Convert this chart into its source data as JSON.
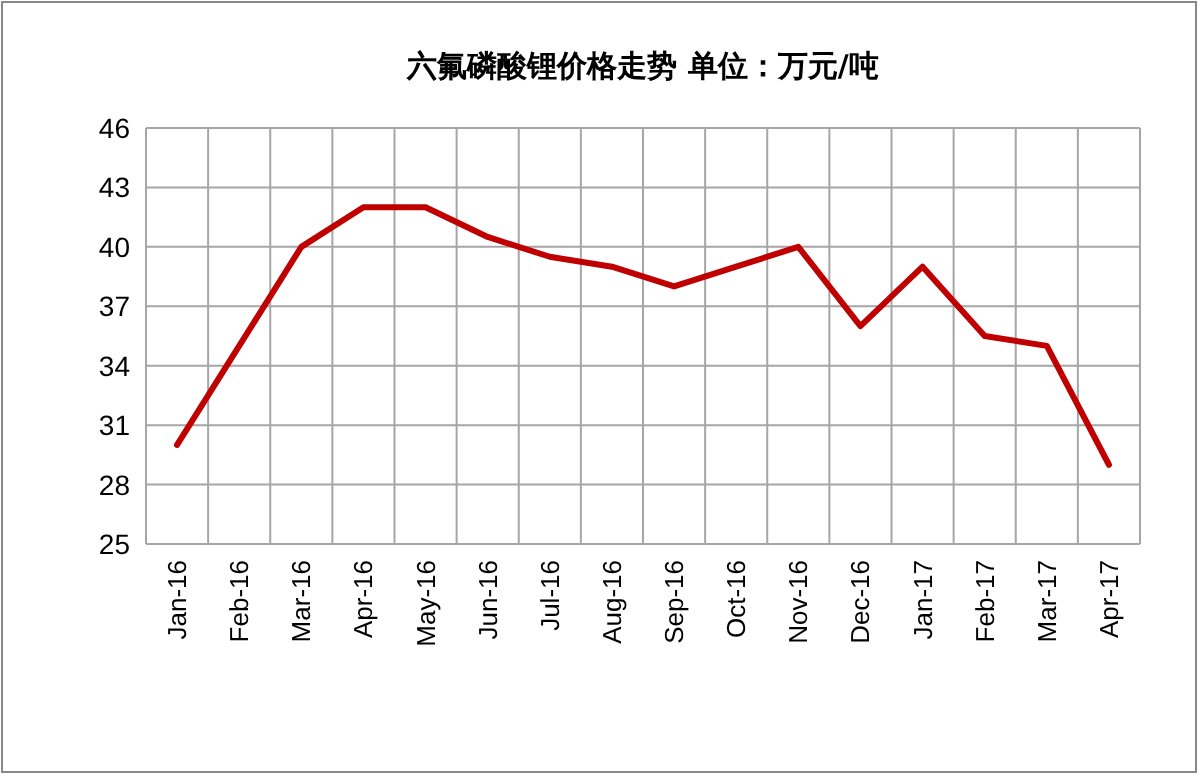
{
  "chart_data": {
    "type": "line",
    "title": "六氟磷酸锂价格走势  单位：万元/吨",
    "categories": [
      "Jan-16",
      "Feb-16",
      "Mar-16",
      "Apr-16",
      "May-16",
      "Jun-16",
      "Jul-16",
      "Aug-16",
      "Sep-16",
      "Oct-16",
      "Nov-16",
      "Dec-16",
      "Jan-17",
      "Feb-17",
      "Mar-17",
      "Apr-17"
    ],
    "values": [
      30,
      35,
      40,
      42,
      42,
      40.5,
      39.5,
      39,
      38,
      39,
      40,
      36,
      39,
      35.5,
      35,
      29
    ],
    "color": "#c00000",
    "ylim": [
      25,
      46
    ],
    "yticks": [
      25,
      28,
      31,
      34,
      37,
      40,
      43,
      46
    ],
    "grid": true,
    "marker": "none",
    "line_style": "solid"
  }
}
